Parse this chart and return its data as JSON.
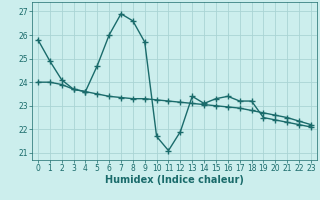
{
  "title": "",
  "xlabel": "Humidex (Indice chaleur)",
  "bg_color": "#cceeed",
  "grid_color": "#aad4d4",
  "line_color": "#1a6b6b",
  "x_ticks": [
    0,
    1,
    2,
    3,
    4,
    5,
    6,
    7,
    8,
    9,
    10,
    11,
    12,
    13,
    14,
    15,
    16,
    17,
    18,
    19,
    20,
    21,
    22,
    23
  ],
  "y_ticks": [
    21,
    22,
    23,
    24,
    25,
    26,
    27
  ],
  "ylim": [
    20.7,
    27.4
  ],
  "xlim": [
    -0.5,
    23.5
  ],
  "line1_x": [
    0,
    1,
    2,
    3,
    4,
    5,
    6,
    7,
    8,
    9,
    10,
    11,
    12,
    13,
    14,
    15,
    16,
    17,
    18,
    19,
    20,
    21,
    22,
    23
  ],
  "line1_y": [
    25.8,
    24.9,
    24.1,
    23.7,
    23.6,
    24.7,
    26.0,
    26.9,
    26.6,
    25.7,
    21.7,
    21.1,
    21.9,
    23.4,
    23.1,
    23.3,
    23.4,
    23.2,
    23.2,
    22.5,
    22.4,
    22.3,
    22.2,
    22.1
  ],
  "line2_x": [
    0,
    1,
    2,
    3,
    4,
    5,
    6,
    7,
    8,
    9,
    10,
    11,
    12,
    13,
    14,
    15,
    16,
    17,
    18,
    19,
    20,
    21,
    22,
    23
  ],
  "line2_y": [
    24.0,
    24.0,
    23.9,
    23.7,
    23.6,
    23.5,
    23.4,
    23.35,
    23.3,
    23.3,
    23.25,
    23.2,
    23.15,
    23.1,
    23.05,
    23.0,
    22.95,
    22.9,
    22.8,
    22.7,
    22.6,
    22.5,
    22.35,
    22.2
  ],
  "xlabel_fontsize": 7,
  "xlabel_bold": true,
  "tick_labelsize": 5.5,
  "linewidth": 1.0,
  "marker": "+",
  "markersize": 4,
  "markeredgewidth": 1.0,
  "spine_linewidth": 0.5,
  "grid_linewidth": 0.6
}
